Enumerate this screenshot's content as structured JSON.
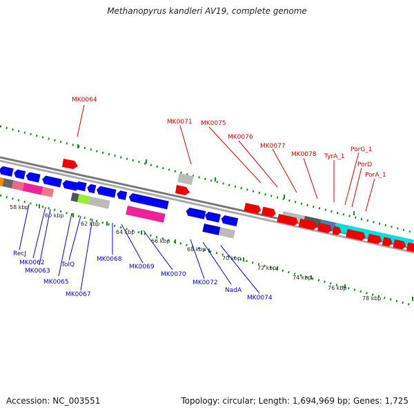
{
  "title": "Methanopyrus kandleri AV19, complete genome",
  "footer": {
    "accession": "Accession: NC_003551",
    "summary": "Topology: circular; Length: 1,694,969 bp; Genes: 1,725"
  },
  "colors": {
    "forward_gene": "#ff0000",
    "reverse_gene": "#0000ff",
    "forward_label": "#cc0000",
    "reverse_label": "#0000cc",
    "tick": "#1a8a1a",
    "backbone": "#808080"
  },
  "ruler": {
    "ticks": [
      "58 kbp",
      "60 kbp",
      "62 kbp",
      "64 kbp",
      "66 kbp",
      "68 kbp",
      "70 kbp",
      "72 kbp",
      "74 kbp",
      "76 kbp",
      "78 kbp"
    ]
  },
  "forward_labels": [
    "MK0064",
    "MK0071",
    "MK0075",
    "MK0076",
    "MK0077",
    "MK0078",
    "TyrA_1",
    "PorG_1",
    "PorD",
    "PorA_1"
  ],
  "reverse_labels": [
    "RecJ",
    "MK0062",
    "MK0063",
    "MK0065",
    "TolQ",
    "MK0067",
    "MK0068",
    "MK0069",
    "MK0070",
    "MK0072",
    "NadA",
    "MK0074"
  ]
}
